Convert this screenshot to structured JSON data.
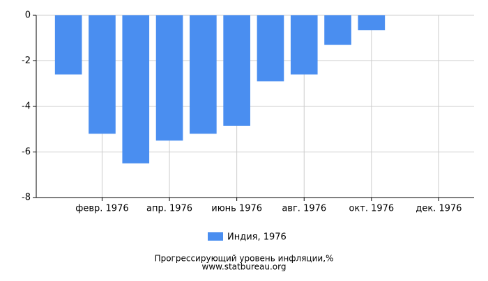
{
  "chart_data": {
    "type": "bar",
    "title": "Прогрессирующий уровень инфляции,%",
    "subtitle": "www.statbureau.org",
    "categories": [
      null,
      "февр. 1976",
      null,
      "апр. 1976",
      null,
      "июнь 1976",
      null,
      "авг. 1976",
      null,
      "окт. 1976",
      null,
      "дек. 1976"
    ],
    "series": [
      {
        "name": "Индия, 1976",
        "color": "#4a8ef0",
        "values": [
          -2.6,
          -5.2,
          -6.5,
          -5.5,
          -5.2,
          -4.85,
          -2.9,
          -2.6,
          -1.3,
          -0.65,
          null,
          null
        ]
      }
    ],
    "ylim": [
      -8,
      0
    ],
    "yticks": [
      0,
      -2,
      -4,
      -6,
      -8
    ],
    "grid": true,
    "legend": "bottom"
  }
}
